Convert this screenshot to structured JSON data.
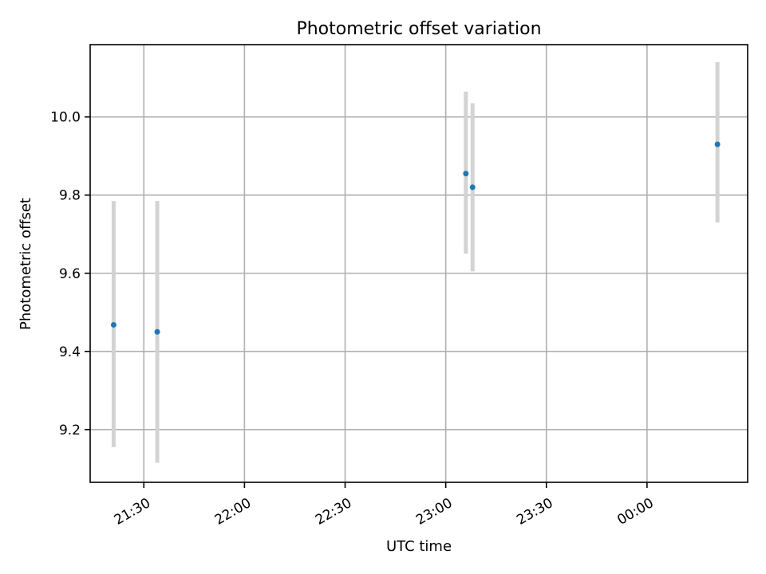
{
  "chart_data": {
    "type": "scatter",
    "title": "Photometric offset variation",
    "xlabel": "UTC time",
    "ylabel": "Photometric offset",
    "x_ticks": [
      "21:30",
      "22:00",
      "22:30",
      "23:00",
      "23:30",
      "00:00"
    ],
    "y_ticks": [
      "9.2",
      "9.4",
      "9.6",
      "9.8",
      "10.0"
    ],
    "x_tick_values": [
      "21:30",
      "22:00",
      "22:30",
      "23:00",
      "23:30",
      "00:00"
    ],
    "y_tick_values": [
      9.2,
      9.4,
      9.6,
      9.8,
      10.0
    ],
    "xlim": [
      "21:14",
      "00:30"
    ],
    "ylim": [
      9.065,
      10.185
    ],
    "grid": true,
    "points": [
      {
        "x": "21:21",
        "y": 9.468,
        "err_low": 9.155,
        "err_high": 9.785
      },
      {
        "x": "21:34",
        "y": 9.45,
        "err_low": 9.115,
        "err_high": 9.785
      },
      {
        "x": "23:06",
        "y": 9.855,
        "err_low": 9.65,
        "err_high": 10.065
      },
      {
        "x": "23:08",
        "y": 9.82,
        "err_low": 9.605,
        "err_high": 10.035
      },
      {
        "x": "00:21",
        "y": 9.93,
        "err_low": 9.73,
        "err_high": 10.14
      }
    ],
    "colors": {
      "marker": "#1f77b4",
      "errorbar": "#d3d3d3",
      "grid": "#b0b0b0"
    }
  }
}
